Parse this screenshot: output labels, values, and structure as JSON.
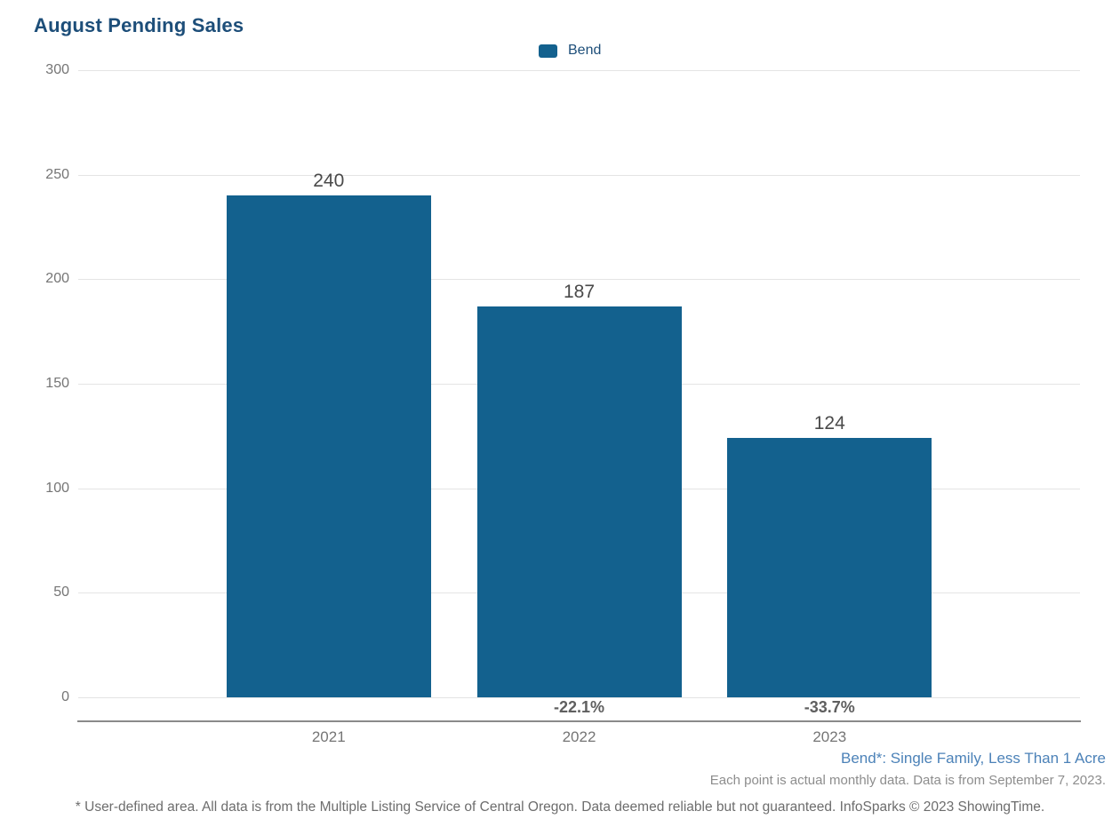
{
  "chart": {
    "title": "August Pending Sales",
    "legend": [
      {
        "label": "Bend",
        "color": "#13618e"
      }
    ],
    "footnote_series": "Bend*: Single Family, Less Than 1 Acre",
    "footnote_data": "Each point is actual monthly data. Data is from September 7, 2023.",
    "disclaimer": "* User-defined area. All data is from the Multiple Listing Service of Central Oregon. Data deemed reliable but not guaranteed. InfoSparks © 2023 ShowingTime.",
    "colors": {
      "title_text": "#1d4e79",
      "bar": "#13618e",
      "series_footnote_text": "#4c82b8",
      "gridline": "#e4e4e4",
      "axis_line": "#8a8a8a",
      "tick_text": "#757575",
      "value_text": "#4a4a4a"
    }
  },
  "chart_data": {
    "type": "bar",
    "title": "August Pending Sales",
    "categories": [
      "2021",
      "2022",
      "2023"
    ],
    "series": [
      {
        "name": "Bend",
        "color": "#13618e",
        "values": [
          240,
          187,
          124
        ]
      }
    ],
    "value_labels": [
      "240",
      "187",
      "124"
    ],
    "pct_change_labels": [
      "",
      "-22.1%",
      "-33.7%"
    ],
    "ylim": [
      0,
      300
    ],
    "yticks": [
      0,
      50,
      100,
      150,
      200,
      250,
      300
    ],
    "grid": true,
    "legend_position": "top-center",
    "xlabel": "",
    "ylabel": ""
  }
}
